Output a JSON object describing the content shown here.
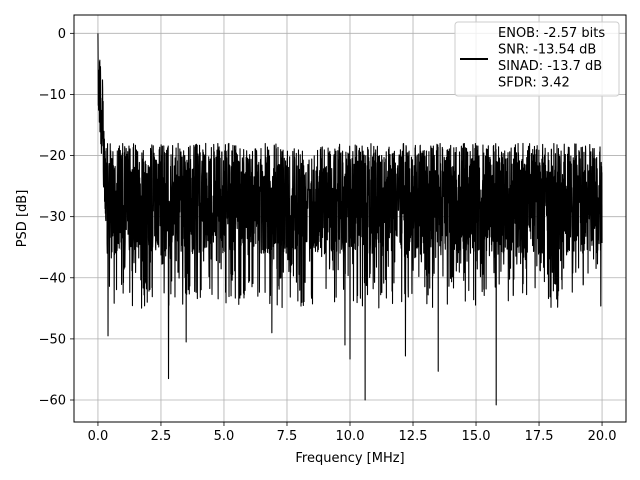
{
  "chart_data": {
    "type": "line",
    "title": "",
    "xlabel": "Frequency [MHz]",
    "ylabel": "PSD [dB]",
    "xlim": [
      -0.95,
      20.95
    ],
    "ylim": [
      -63.6,
      3.0
    ],
    "xticks": [
      0.0,
      2.5,
      5.0,
      7.5,
      10.0,
      12.5,
      15.0,
      17.5,
      20.0
    ],
    "xtick_labels": [
      "0.0",
      "2.5",
      "5.0",
      "7.5",
      "10.0",
      "12.5",
      "15.0",
      "17.5",
      "20.0"
    ],
    "yticks": [
      0,
      -10,
      -20,
      -30,
      -40,
      -50,
      -60
    ],
    "ytick_labels": [
      "0",
      "−10",
      "−20",
      "−30",
      "−40",
      "−50",
      "−60"
    ],
    "grid": true,
    "legend_placement": "top-right",
    "legend_lines": [
      "ENOB: -2.57 bits",
      "SNR: -13.54 dB",
      "SINAD: -13.7 dB",
      "SFDR: 3.42"
    ],
    "series": [
      {
        "color": "#000000",
        "x_range": [
          0.0,
          20.0
        ],
        "peak": {
          "x": 0.0,
          "y": 0.0
        },
        "noise_floor_mean_db": -27,
        "noise_top_envelope_db": -18,
        "notable_dips": [
          {
            "x": 0.4,
            "y": -49.5
          },
          {
            "x": 2.8,
            "y": -56.5
          },
          {
            "x": 3.5,
            "y": -50.5
          },
          {
            "x": 6.9,
            "y": -49.0
          },
          {
            "x": 9.8,
            "y": -51.0
          },
          {
            "x": 10.0,
            "y": -53.3
          },
          {
            "x": 10.6,
            "y": -60.0
          },
          {
            "x": 12.2,
            "y": -52.8
          },
          {
            "x": 13.5,
            "y": -55.3
          },
          {
            "x": 15.8,
            "y": -60.8
          }
        ]
      }
    ]
  }
}
